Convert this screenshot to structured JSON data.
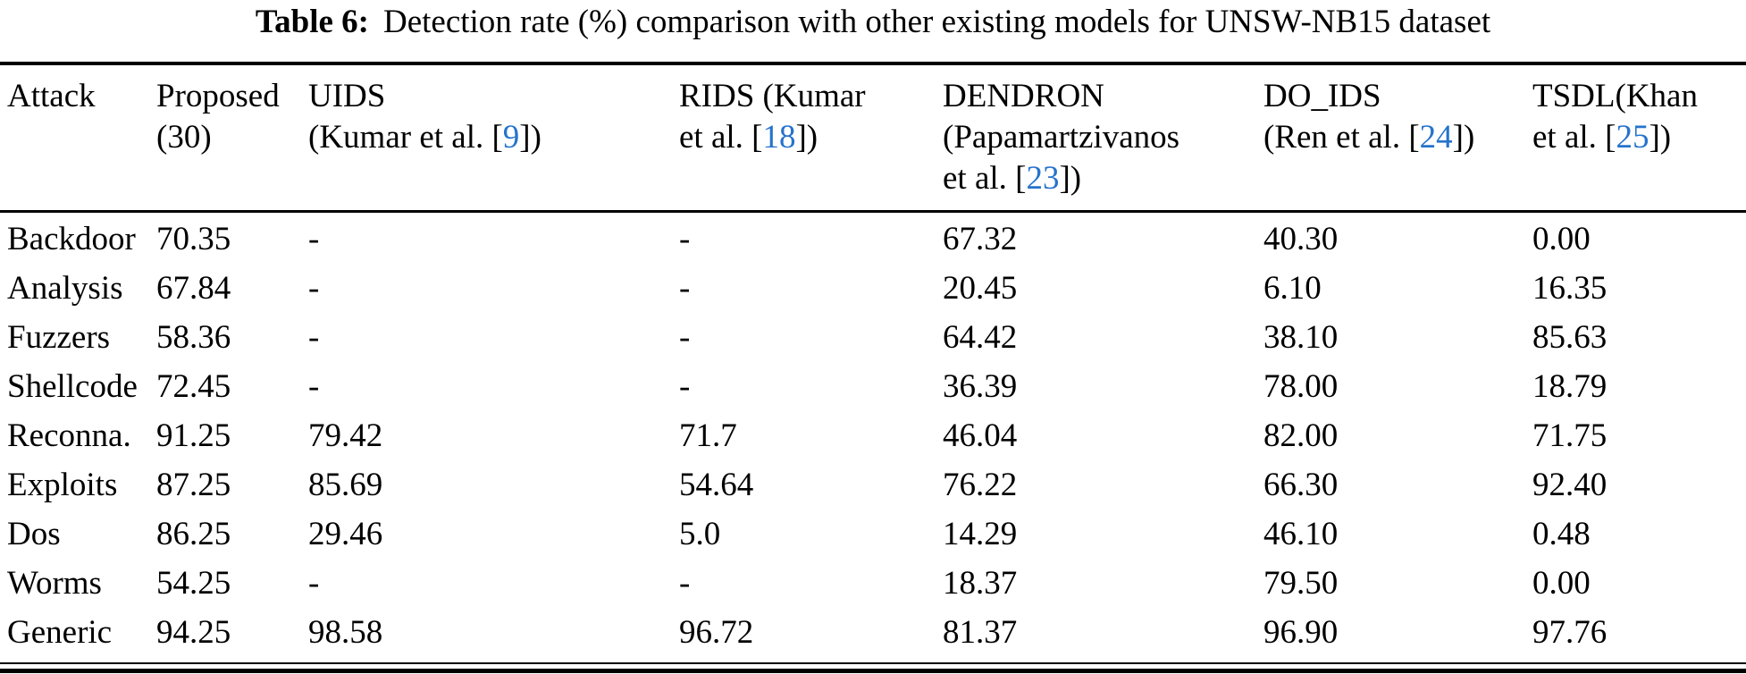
{
  "caption": {
    "label": "Table 6:",
    "text": "Detection rate (%) comparison with other existing models for UNSW-NB15 dataset"
  },
  "citation_color": "#2673CC",
  "table": {
    "columns": [
      {
        "id": "attack",
        "header_lines": [
          "Attack"
        ]
      },
      {
        "id": "proposed",
        "header_lines": [
          "Proposed",
          "(30)"
        ]
      },
      {
        "id": "uids",
        "header_lines": [
          "UIDS",
          "(Kumar et al. [9])"
        ]
      },
      {
        "id": "rids",
        "header_lines": [
          "RIDS (Kumar",
          "et al. [18])"
        ]
      },
      {
        "id": "dendron",
        "header_lines": [
          "DENDRON",
          "(Papamartzivanos",
          "et al. [23])"
        ]
      },
      {
        "id": "do-ids",
        "header_lines": [
          "DO_IDS",
          "(Ren et al. [24])"
        ]
      },
      {
        "id": "tsdl",
        "header_lines": [
          "TSDL(Khan",
          "et al. [25])"
        ]
      }
    ],
    "rows": [
      {
        "attack": "Backdoor",
        "values": [
          "70.35",
          "-",
          "-",
          "67.32",
          "40.30",
          "0.00"
        ]
      },
      {
        "attack": "Analysis",
        "values": [
          "67.84",
          "-",
          "-",
          "20.45",
          "6.10",
          "16.35"
        ]
      },
      {
        "attack": "Fuzzers",
        "values": [
          "58.36",
          "-",
          "-",
          "64.42",
          "38.10",
          "85.63"
        ]
      },
      {
        "attack": "Shellcode",
        "values": [
          "72.45",
          "-",
          "-",
          "36.39",
          "78.00",
          "18.79"
        ]
      },
      {
        "attack": "Reconna.",
        "values": [
          "91.25",
          "79.42",
          "71.7",
          "46.04",
          "82.00",
          "71.75"
        ]
      },
      {
        "attack": "Exploits",
        "values": [
          "87.25",
          "85.69",
          "54.64",
          "76.22",
          "66.30",
          "92.40"
        ]
      },
      {
        "attack": "Dos",
        "values": [
          "86.25",
          "29.46",
          "5.0",
          "14.29",
          "46.10",
          "0.48"
        ]
      },
      {
        "attack": "Worms",
        "values": [
          "54.25",
          "-",
          "-",
          "18.37",
          "79.50",
          "0.00"
        ]
      },
      {
        "attack": "Generic",
        "values": [
          "94.25",
          "98.58",
          "96.72",
          "81.37",
          "96.90",
          "97.76"
        ]
      }
    ]
  }
}
